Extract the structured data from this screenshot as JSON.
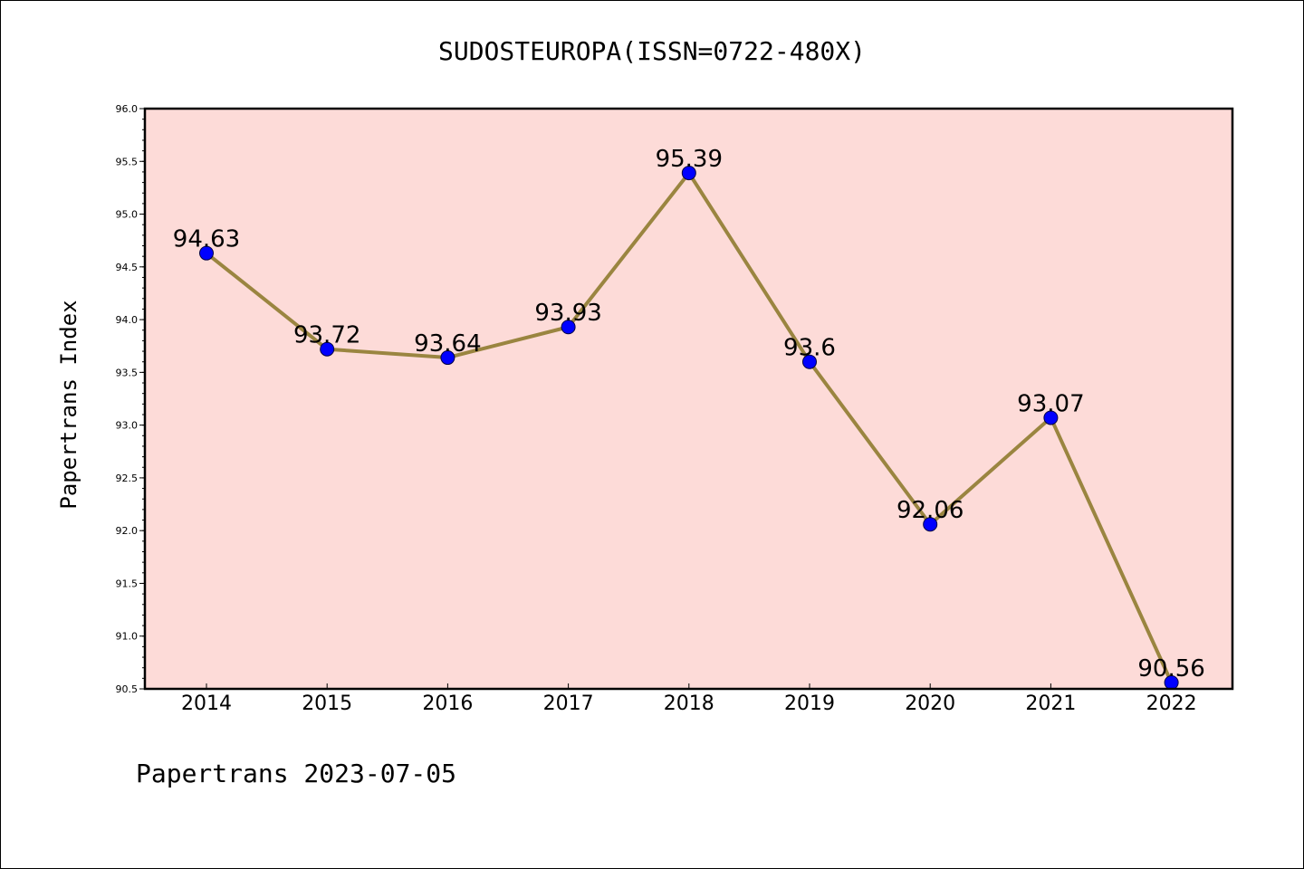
{
  "chart_data": {
    "type": "line",
    "title": "SUDOSTEUROPA(ISSN=0722-480X)",
    "ylabel": "Papertrans Index",
    "xlabel": "",
    "categories": [
      "2014",
      "2015",
      "2016",
      "2017",
      "2018",
      "2019",
      "2020",
      "2021",
      "2022"
    ],
    "values": [
      94.63,
      93.72,
      93.64,
      93.93,
      95.39,
      93.6,
      92.06,
      93.07,
      90.56
    ],
    "data_labels": [
      "94.63",
      "93.72",
      "93.64",
      "93.93",
      "95.39",
      "93.6",
      "92.06",
      "93.07",
      "90.56"
    ],
    "ylim": [
      90.5,
      96.0
    ],
    "yticks": [
      "90.5",
      "91.0",
      "91.5",
      "92.0",
      "92.5",
      "93.0",
      "93.5",
      "94.0",
      "94.5",
      "95.0",
      "95.5",
      "96.0"
    ],
    "grid": false,
    "colors": {
      "plot_background": "#fddbd8",
      "line": "#9a8540",
      "marker": "#0000ff"
    }
  },
  "footer": "Papertrans 2023-07-05"
}
